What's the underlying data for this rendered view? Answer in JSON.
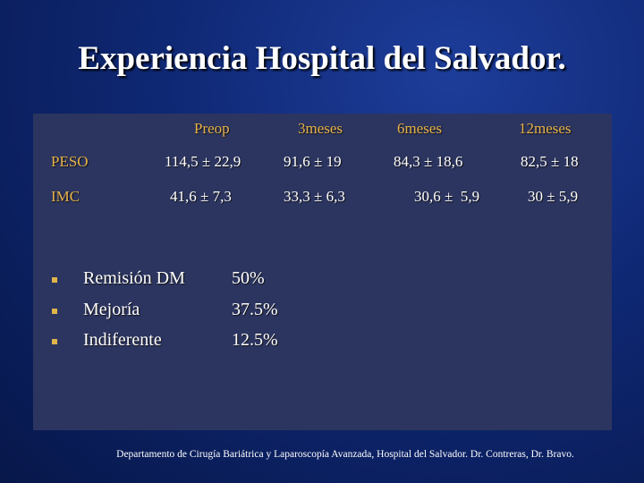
{
  "slide": {
    "title": "Experiencia Hospital del Salvador.",
    "table": {
      "headers": [
        "Preop",
        "3meses",
        "6meses",
        "12meses"
      ],
      "rows": [
        {
          "label": "PESO",
          "values": [
            "114,5 ± 22,9",
            "91,6 ± 19",
            "84,3 ± 18,6",
            "82,5 ± 18"
          ]
        },
        {
          "label": "IMC",
          "values": [
            "41,6 ± 7,3",
            "33,3 ± 6,3",
            "30,6 ±  5,9",
            "30 ± 5,9"
          ]
        }
      ]
    },
    "bullets": [
      {
        "label": "Remisión DM",
        "value": "50%"
      },
      {
        "label": "Mejoría",
        "value": "37.5%"
      },
      {
        "label": "Indiferente",
        "value": "12.5%"
      }
    ],
    "footer": "Departamento de Cirugía Bariátrica y Laparoscopía Avanzada, Hospital del Salvador. Dr. Contreras, Dr. Bravo.",
    "colors": {
      "accent": "#e6b24a",
      "panel": "#2c3560",
      "background": "#0f2874"
    }
  }
}
